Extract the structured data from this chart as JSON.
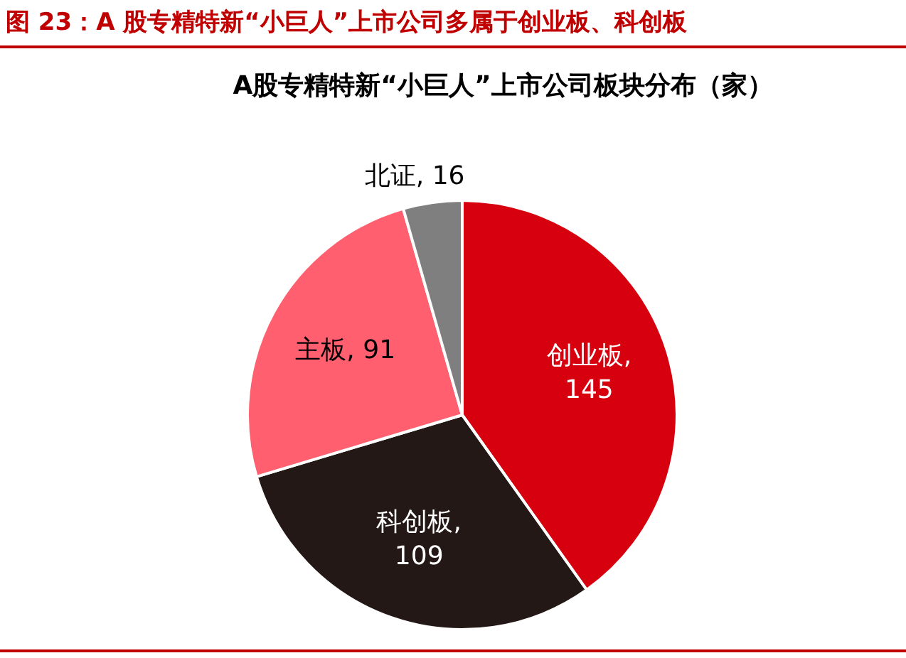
{
  "chart_data": {
    "type": "pie",
    "title": "图 23：A 股专精特新“小巨人”上市公司多属于创业板、科创板",
    "subtitle": "A股专精特新“小巨人”上市公司板块分布（家）",
    "categories": [
      "创业板",
      "科创板",
      "主板",
      "北证"
    ],
    "values": [
      145,
      109,
      91,
      16
    ],
    "colors": [
      "#d7000f",
      "#231815",
      "#ff5f6e",
      "#7f7f7f"
    ],
    "value_labels": [
      ", 145",
      ", 109",
      ", 91",
      ", 16"
    ],
    "legend": false
  }
}
